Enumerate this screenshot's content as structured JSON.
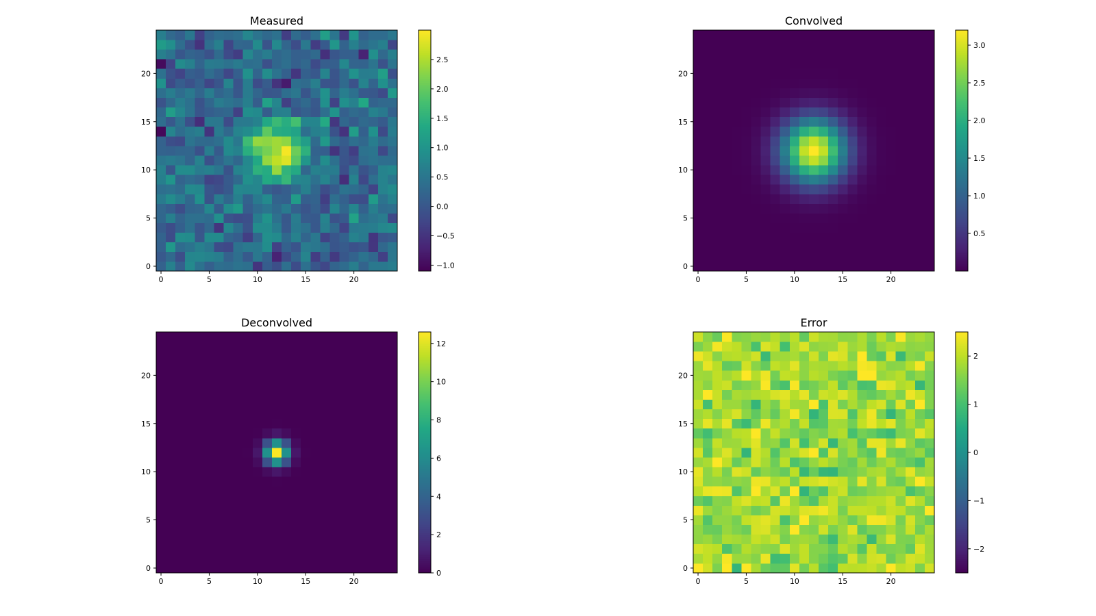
{
  "figure": {
    "layout": "2x2 grid of heatmaps with colorbars",
    "colormap": "viridis"
  },
  "chart_data": [
    {
      "type": "heatmap",
      "id": "measured",
      "title": "Measured",
      "grid_size": [
        25,
        25
      ],
      "origin": "lower",
      "xlim": [
        -0.5,
        24.5
      ],
      "ylim": [
        -0.5,
        24.5
      ],
      "xticks": [
        0,
        5,
        10,
        15,
        20
      ],
      "yticks": [
        0,
        5,
        10,
        15,
        20
      ],
      "colorbar": {
        "range": [
          -1.1,
          3.0
        ],
        "ticks": [
          -1.0,
          -0.5,
          0.0,
          0.5,
          1.0,
          1.5,
          2.0,
          2.5
        ],
        "tick_labels": [
          "−1.0",
          "−0.5",
          "0.0",
          "0.5",
          "1.0",
          "1.5",
          "2.0",
          "2.5"
        ]
      },
      "description": "Gaussian blob (peak ~2.9) centered near (12,12), sigma ~2, plus random noise (std ~0.35, mean ~0.35)",
      "peak": {
        "x": 13,
        "y": 12,
        "value": 2.95
      }
    },
    {
      "type": "heatmap",
      "id": "convolved",
      "title": "Convolved",
      "grid_size": [
        25,
        25
      ],
      "origin": "lower",
      "xlim": [
        -0.5,
        24.5
      ],
      "ylim": [
        -0.5,
        24.5
      ],
      "xticks": [
        0,
        5,
        10,
        15,
        20
      ],
      "yticks": [
        0,
        5,
        10,
        15,
        20
      ],
      "colorbar": {
        "range": [
          0.0,
          3.2
        ],
        "ticks": [
          0.5,
          1.0,
          1.5,
          2.0,
          2.5,
          3.0
        ],
        "tick_labels": [
          "0.5",
          "1.0",
          "1.5",
          "2.0",
          "2.5",
          "3.0"
        ]
      },
      "description": "Smooth Gaussian, peak ~3.2 at (12,12), sigma ~2.3",
      "peak": {
        "x": 12,
        "y": 12,
        "value": 3.2
      }
    },
    {
      "type": "heatmap",
      "id": "deconvolved",
      "title": "Deconvolved",
      "grid_size": [
        25,
        25
      ],
      "origin": "lower",
      "xlim": [
        -0.5,
        24.5
      ],
      "ylim": [
        -0.5,
        24.5
      ],
      "xticks": [
        0,
        5,
        10,
        15,
        20
      ],
      "yticks": [
        0,
        5,
        10,
        15,
        20
      ],
      "colorbar": {
        "range": [
          0.0,
          12.6
        ],
        "ticks": [
          0,
          2,
          4,
          6,
          8,
          10,
          12
        ],
        "tick_labels": [
          "0",
          "2",
          "4",
          "6",
          "8",
          "10",
          "12"
        ]
      },
      "description": "Sharp peak ~12.6 at (12,12), narrow spread",
      "peak": {
        "x": 12,
        "y": 12,
        "value": 12.6
      }
    },
    {
      "type": "heatmap",
      "id": "error",
      "title": "Error",
      "grid_size": [
        25,
        25
      ],
      "origin": "lower",
      "xlim": [
        -0.5,
        24.5
      ],
      "ylim": [
        -0.5,
        24.5
      ],
      "xticks": [
        0,
        5,
        10,
        15,
        20
      ],
      "yticks": [
        0,
        5,
        10,
        15,
        20
      ],
      "colorbar": {
        "range": [
          -2.5,
          2.5
        ],
        "ticks": [
          -2,
          -1,
          0,
          1,
          2
        ],
        "tick_labels": [
          "−2",
          "−1",
          "0",
          "1",
          "2"
        ]
      },
      "description": "Mostly high values (~1.0 to 2.5), noisy texture",
      "value_range_observed": [
        0.8,
        2.5
      ]
    }
  ]
}
